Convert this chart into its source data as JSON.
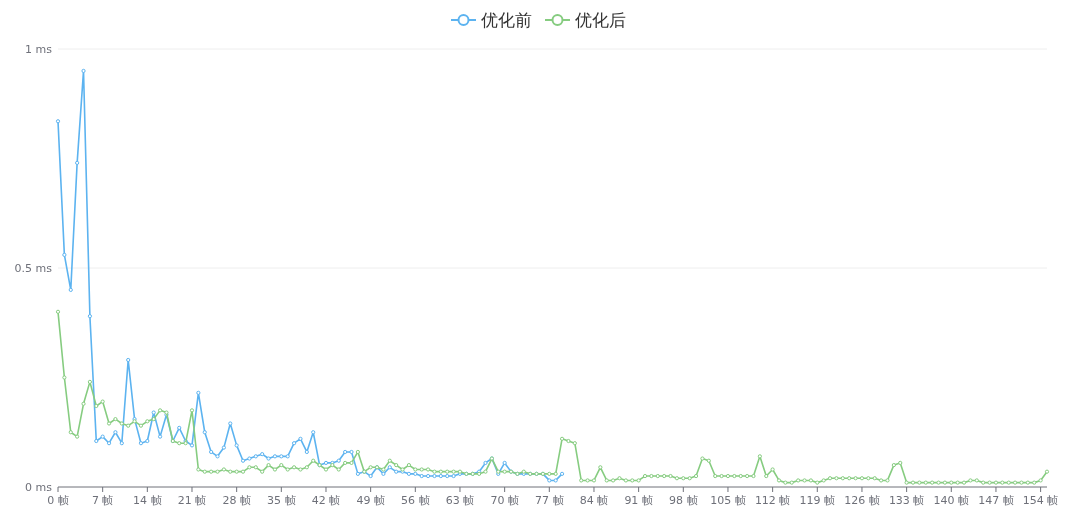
{
  "chart_data": {
    "type": "line",
    "categories": [
      "0 帧",
      null,
      null,
      null,
      null,
      null,
      null,
      "7 帧",
      null,
      null,
      null,
      null,
      null,
      null,
      "14 帧",
      null,
      null,
      null,
      null,
      null,
      null,
      "21 帧",
      null,
      null,
      null,
      null,
      null,
      null,
      "28 帧",
      null,
      null,
      null,
      null,
      null,
      null,
      "35 帧",
      null,
      null,
      null,
      null,
      null,
      null,
      "42 帧",
      null,
      null,
      null,
      null,
      null,
      null,
      "49 帧",
      null,
      null,
      null,
      null,
      null,
      null,
      "56 帧",
      null,
      null,
      null,
      null,
      null,
      null,
      "63 帧",
      null,
      null,
      null,
      null,
      null,
      null,
      "70 帧",
      null,
      null,
      null,
      null,
      null,
      null,
      "77 帧",
      null,
      null,
      null,
      null,
      null,
      null,
      "84 帧",
      null,
      null,
      null,
      null,
      null,
      null,
      "91 帧",
      null,
      null,
      null,
      null,
      null,
      null,
      "98 帧",
      null,
      null,
      null,
      null,
      null,
      null,
      "105 帧",
      null,
      null,
      null,
      null,
      null,
      null,
      "112 帧",
      null,
      null,
      null,
      null,
      null,
      null,
      "119 帧",
      null,
      null,
      null,
      null,
      null,
      null,
      "126 帧",
      null,
      null,
      null,
      null,
      null,
      null,
      "133 帧",
      null,
      null,
      null,
      null,
      null,
      null,
      "140 帧",
      null,
      null,
      null,
      null,
      null,
      null,
      "147 帧",
      null,
      null,
      null,
      null,
      null,
      null,
      "154 帧",
      null
    ],
    "series": [
      {
        "name": "优化前",
        "color": "#5cb3f0",
        "values": [
          0.835,
          0.53,
          0.45,
          0.74,
          0.95,
          0.39,
          0.105,
          0.115,
          0.1,
          0.125,
          0.1,
          0.29,
          0.155,
          0.1,
          0.105,
          0.17,
          0.115,
          0.165,
          0.105,
          0.135,
          0.105,
          0.095,
          0.215,
          0.125,
          0.08,
          0.07,
          0.09,
          0.145,
          0.095,
          0.06,
          0.065,
          0.07,
          0.075,
          0.065,
          0.07,
          0.07,
          0.07,
          0.1,
          0.11,
          0.08,
          0.125,
          0.05,
          0.055,
          0.055,
          0.06,
          0.08,
          0.08,
          0.03,
          0.035,
          0.025,
          0.045,
          0.03,
          0.045,
          0.035,
          0.035,
          0.03,
          0.03,
          0.025,
          0.025,
          0.025,
          0.025,
          0.025,
          0.025,
          0.03,
          0.03,
          0.03,
          0.035,
          0.055,
          0.065,
          0.03,
          0.055,
          0.035,
          0.03,
          0.03,
          0.03,
          0.03,
          0.03,
          0.015,
          0.015,
          0.03,
          null,
          null,
          null,
          null,
          null,
          null,
          null,
          null,
          null,
          null,
          null,
          null,
          null,
          null,
          null,
          null,
          null,
          null,
          null,
          null,
          null,
          null,
          null,
          null,
          null,
          null,
          null,
          null,
          null,
          null,
          null,
          null,
          null,
          null,
          null,
          null,
          null,
          null,
          null,
          null,
          null,
          null,
          null,
          null,
          null,
          null,
          null,
          null,
          null,
          null,
          null,
          null,
          null,
          null,
          null,
          null,
          null,
          null,
          null,
          null,
          null,
          null,
          null,
          null,
          null,
          null,
          null,
          null,
          null,
          null,
          null,
          null,
          null,
          null,
          null,
          null
        ]
      },
      {
        "name": "优化后",
        "color": "#86cc80",
        "values": [
          0.4,
          0.25,
          0.125,
          0.115,
          0.19,
          0.24,
          0.185,
          0.195,
          0.145,
          0.155,
          0.145,
          0.14,
          0.15,
          0.14,
          0.15,
          0.155,
          0.175,
          0.17,
          0.105,
          0.1,
          0.1,
          0.175,
          0.04,
          0.035,
          0.035,
          0.035,
          0.04,
          0.035,
          0.035,
          0.035,
          0.045,
          0.045,
          0.035,
          0.05,
          0.04,
          0.05,
          0.04,
          0.045,
          0.04,
          0.045,
          0.06,
          0.05,
          0.04,
          0.05,
          0.04,
          0.055,
          0.055,
          0.08,
          0.035,
          0.045,
          0.045,
          0.04,
          0.06,
          0.05,
          0.04,
          0.05,
          0.04,
          0.04,
          0.04,
          0.035,
          0.035,
          0.035,
          0.035,
          0.035,
          0.03,
          0.03,
          0.03,
          0.035,
          0.065,
          0.035,
          0.035,
          0.035,
          0.03,
          0.035,
          0.03,
          0.03,
          0.03,
          0.03,
          0.03,
          0.11,
          0.105,
          0.1,
          0.015,
          0.015,
          0.015,
          0.045,
          0.015,
          0.015,
          0.02,
          0.015,
          0.015,
          0.015,
          0.025,
          0.025,
          0.025,
          0.025,
          0.025,
          0.02,
          0.02,
          0.02,
          0.025,
          0.065,
          0.06,
          0.025,
          0.025,
          0.025,
          0.025,
          0.025,
          0.025,
          0.025,
          0.07,
          0.025,
          0.04,
          0.015,
          0.01,
          0.01,
          0.015,
          0.015,
          0.015,
          0.01,
          0.015,
          0.02,
          0.02,
          0.02,
          0.02,
          0.02,
          0.02,
          0.02,
          0.02,
          0.015,
          0.015,
          0.05,
          0.055,
          0.01,
          0.01,
          0.01,
          0.01,
          0.01,
          0.01,
          0.01,
          0.01,
          0.01,
          0.01,
          0.015,
          0.015,
          0.01,
          0.01,
          0.01,
          0.01,
          0.01,
          0.01,
          0.01,
          0.01,
          0.01,
          0.015,
          0.035
        ]
      }
    ],
    "ylim": [
      0,
      1
    ],
    "yticks": [
      {
        "value": 0,
        "label": "0 ms"
      },
      {
        "value": 0.5,
        "label": "0.5 ms"
      },
      {
        "value": 1,
        "label": "1 ms"
      }
    ],
    "grid": "y",
    "legend": "top",
    "marker": "circle",
    "line_style": "solid"
  }
}
